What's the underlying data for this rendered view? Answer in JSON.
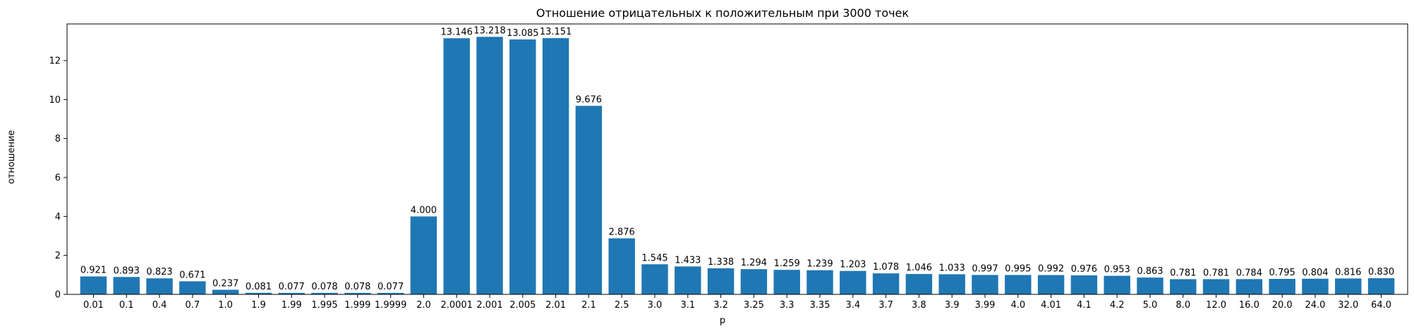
{
  "chart_data": {
    "type": "bar",
    "title": "Отношение отрицательных к положительным при 3000 точек",
    "xlabel": "p",
    "ylabel": "отношение",
    "ylim": [
      0,
      13.879
    ],
    "yticks": [
      0,
      2,
      4,
      6,
      8,
      10,
      12
    ],
    "grid": false,
    "bar_color": "#1f77b4",
    "categories": [
      "0.01",
      "0.1",
      "0.4",
      "0.7",
      "1.0",
      "1.9",
      "1.99",
      "1.995",
      "1.999",
      "1.9999",
      "2.0",
      "2.0001",
      "2.001",
      "2.005",
      "2.01",
      "2.1",
      "2.5",
      "3.0",
      "3.1",
      "3.2",
      "3.25",
      "3.3",
      "3.35",
      "3.4",
      "3.7",
      "3.8",
      "3.9",
      "3.99",
      "4.0",
      "4.01",
      "4.1",
      "4.2",
      "5.0",
      "8.0",
      "12.0",
      "16.0",
      "20.0",
      "24.0",
      "32.0",
      "64.0"
    ],
    "values": [
      0.921,
      0.893,
      0.823,
      0.671,
      0.237,
      0.081,
      0.077,
      0.078,
      0.078,
      0.077,
      4.0,
      13.146,
      13.218,
      13.085,
      13.151,
      9.676,
      2.876,
      1.545,
      1.433,
      1.338,
      1.294,
      1.259,
      1.239,
      1.203,
      1.078,
      1.046,
      1.033,
      0.997,
      0.995,
      0.992,
      0.976,
      0.953,
      0.863,
      0.781,
      0.781,
      0.784,
      0.795,
      0.804,
      0.816,
      0.83
    ],
    "value_labels": [
      "0.921",
      "0.893",
      "0.823",
      "0.671",
      "0.237",
      "0.081",
      "0.077",
      "0.078",
      "0.078",
      "0.077",
      "4.000",
      "13.146",
      "13.218",
      "13.085",
      "13.151",
      "9.676",
      "2.876",
      "1.545",
      "1.433",
      "1.338",
      "1.294",
      "1.259",
      "1.239",
      "1.203",
      "1.078",
      "1.046",
      "1.033",
      "0.997",
      "0.995",
      "0.992",
      "0.976",
      "0.953",
      "0.863",
      "0.781",
      "0.781",
      "0.784",
      "0.795",
      "0.804",
      "0.816",
      "0.830"
    ]
  }
}
